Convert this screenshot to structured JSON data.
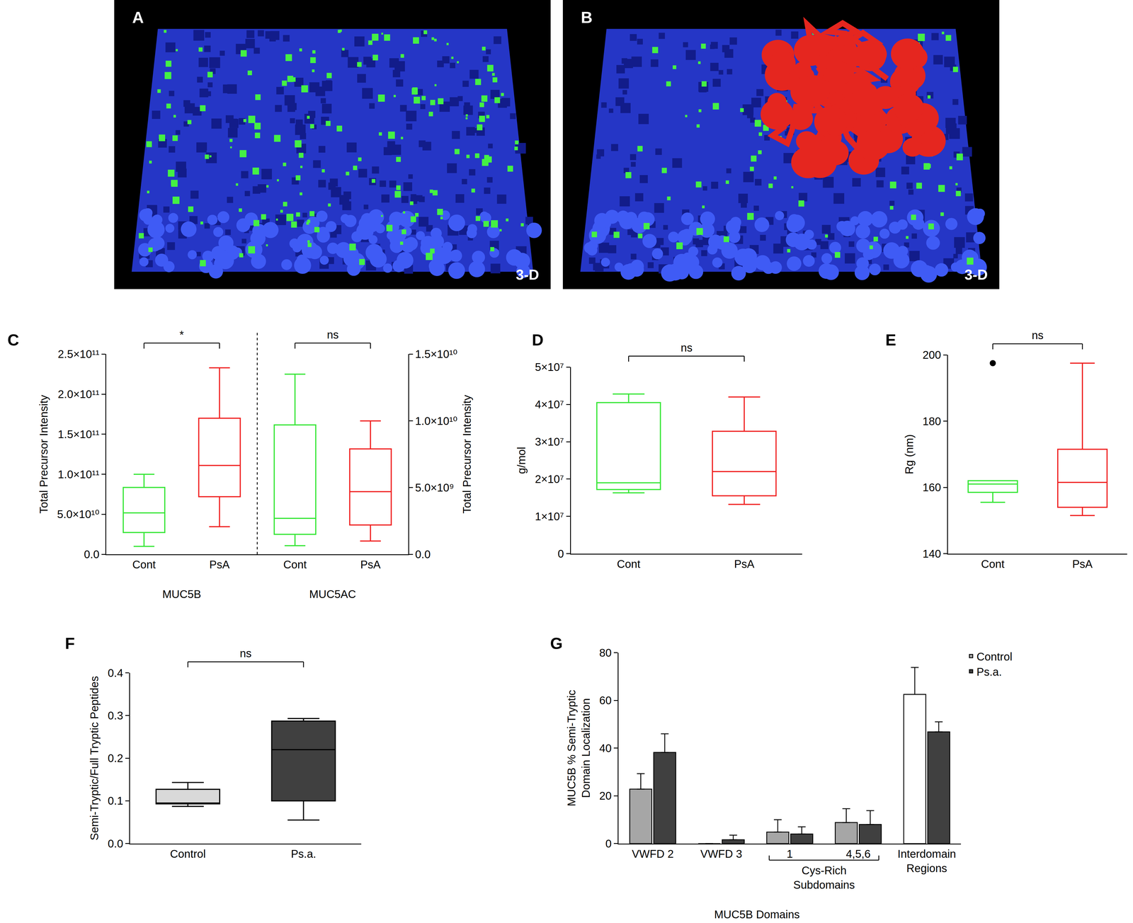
{
  "chart_data": [
    {
      "type": "image",
      "panel": "A",
      "annotations": [
        "3-D"
      ]
    },
    {
      "type": "image",
      "panel": "B",
      "annotations": [
        "3-D"
      ]
    },
    {
      "type": "box",
      "panel": "C",
      "categories": [
        "Cont",
        "PsA",
        "Cont",
        "PsA"
      ],
      "groups": [
        {
          "text": "MUC5B",
          "from": 0,
          "to": 1
        },
        {
          "text": "MUC5AC",
          "from": 2,
          "to": 3
        }
      ],
      "boxes": [
        {
          "min": 10000000000.0,
          "q1": 27300000000.0,
          "median": 51800000000.0,
          "q3": 83600000000.0,
          "max": 100000000000.0
        },
        {
          "min": 34500000000.0,
          "q1": 72000000000.0,
          "median": 111000000000.0,
          "q3": 170000000000.0,
          "max": 233000000000.0
        },
        {
          "min": 650000000.0,
          "q1": 1500000000.0,
          "median": 2700000000.0,
          "q3": 9700000000.0,
          "max": 13500000000.0,
          "axis": "y2"
        },
        {
          "min": 1000000000.0,
          "q1": 2200000000.0,
          "median": 4700000000.0,
          "q3": 7900000000.0,
          "max": 10000000000.0,
          "axis": "y2"
        }
      ],
      "colors": [
        "#33e633",
        "#f01e1e",
        "#33e633",
        "#f01e1e"
      ],
      "ylabel": "Total Precursor Intensity",
      "y2label": "Total Precursor Intensity",
      "ylim": [
        0,
        250000000000.0
      ],
      "yticks": [
        {
          "value": 0,
          "label": "0.0"
        },
        {
          "value": 50000000000.0,
          "label": "5.0×10¹⁰"
        },
        {
          "value": 100000000000.0,
          "label": "1.0×10¹¹"
        },
        {
          "value": 150000000000.0,
          "label": "1.5×10¹¹"
        },
        {
          "value": 200000000000.0,
          "label": "2.0×10¹¹"
        },
        {
          "value": 250000000000.0,
          "label": "2.5×10¹¹"
        }
      ],
      "y2lim": [
        0,
        15000000000.0
      ],
      "y2ticks": [
        {
          "value": 0,
          "label": "0.0"
        },
        {
          "value": 5000000000.0,
          "label": "5.0×10⁹"
        },
        {
          "value": 10000000000.0,
          "label": "1.0×10¹⁰"
        },
        {
          "value": 15000000000.0,
          "label": "1.5×10¹⁰"
        }
      ],
      "brackets": [
        {
          "from": 0,
          "to": 1,
          "label": "*"
        },
        {
          "from": 2,
          "to": 3,
          "label": "ns"
        }
      ]
    },
    {
      "type": "box",
      "panel": "D",
      "categories": [
        "Cont",
        "PsA"
      ],
      "boxes": [
        {
          "min": 16300000.0,
          "q1": 17200000.0,
          "median": 19000000.0,
          "q3": 40500000.0,
          "max": 42800000.0
        },
        {
          "min": 13200000.0,
          "q1": 15500000.0,
          "median": 22000000.0,
          "q3": 32800000.0,
          "max": 42000000.0
        }
      ],
      "colors": [
        "#33e633",
        "#f01e1e"
      ],
      "ylabel": "g/mol",
      "ylim": [
        0,
        50000000.0
      ],
      "yticks": [
        0,
        {
          "value": 10000000.0,
          "label": "1×10⁷"
        },
        {
          "value": 20000000.0,
          "label": "2×10⁷"
        },
        {
          "value": 30000000.0,
          "label": "3×10⁷"
        },
        {
          "value": 40000000.0,
          "label": "4×10⁷"
        },
        {
          "value": 50000000.0,
          "label": "5×10⁷"
        }
      ],
      "brackets": [
        {
          "from": 0,
          "to": 1,
          "label": "ns"
        }
      ]
    },
    {
      "type": "box",
      "panel": "E",
      "categories": [
        "Cont",
        "PsA"
      ],
      "boxes": [
        {
          "min": 155.5,
          "q1": 158.5,
          "median": 161,
          "q3": 162,
          "max": 162,
          "outliers": [
            197.5
          ]
        },
        {
          "min": 151.5,
          "q1": 154,
          "median": 161.5,
          "q3": 171.5,
          "max": 197.5
        }
      ],
      "colors": [
        "#33e633",
        "#f01e1e"
      ],
      "ylabel": "Rg (nm)",
      "ylim": [
        140,
        200
      ],
      "yticks": [
        140,
        160,
        180,
        200
      ],
      "brackets": [
        {
          "from": 0,
          "to": 1,
          "label": "ns"
        }
      ]
    },
    {
      "type": "box",
      "panel": "F",
      "categories": [
        "Control",
        "Ps.a."
      ],
      "boxes": [
        {
          "min": 0.087,
          "q1": 0.093,
          "median": 0.095,
          "q3": 0.127,
          "max": 0.143
        },
        {
          "min": 0.055,
          "q1": 0.1,
          "median": 0.22,
          "q3": 0.287,
          "max": 0.293
        }
      ],
      "colors": [
        "#d9d9d9",
        "#404040"
      ],
      "marker": "filled",
      "ylabel": "Semi-Tryptic/Full Tryptic Peptides",
      "ylim": [
        0,
        0.4
      ],
      "yticks": [
        {
          "value": 0,
          "label": "0.0"
        },
        0.1,
        0.2,
        0.3,
        0.4
      ],
      "brackets": [
        {
          "from": 0,
          "to": 1,
          "label": "ns"
        }
      ]
    },
    {
      "type": "bar",
      "panel": "G",
      "categories": [
        "VWFD 2",
        "VWFD 3",
        "1",
        "4,5,6",
        "Interdomain Regions"
      ],
      "groups": [
        {
          "text": [
            "Cys-Rich",
            "Subdomains"
          ],
          "from": 2,
          "to": 3
        }
      ],
      "series": [
        {
          "name": "Control",
          "color": "#a6a6a6",
          "colors": [
            "#a6a6a6",
            "#a6a6a6",
            "#a6a6a6",
            "#a6a6a6",
            "#ffffff"
          ],
          "values": [
            22.8,
            0,
            4.8,
            8.8,
            62.5
          ],
          "errors": [
            6.5,
            0,
            5.2,
            5.8,
            11.3
          ]
        },
        {
          "name": "Ps.a.",
          "color": "#404040",
          "values": [
            38.2,
            1.6,
            4.0,
            8.0,
            46.8
          ],
          "errors": [
            7.8,
            1.9,
            3.0,
            5.8,
            4.2
          ]
        }
      ],
      "xlabel": "MUC5B Domains",
      "ylabel": [
        "MUC5B % Semi-Tryptic",
        "Domain Localization"
      ],
      "ylim": [
        0,
        80
      ],
      "yticks": [
        0,
        20,
        40,
        60,
        80
      ],
      "legend": "upper right"
    }
  ]
}
